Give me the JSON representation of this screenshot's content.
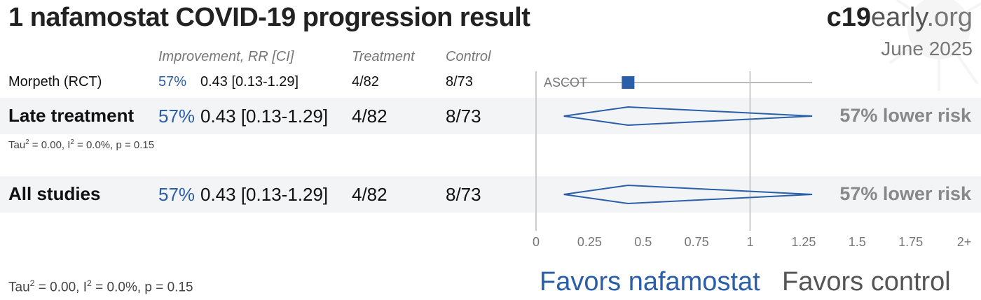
{
  "header": {
    "title": "1 nafamostat COVID-19 progression result",
    "brand_prefix": "c19",
    "brand_suffix": "early",
    "brand_tld": ".org",
    "date": "June 2025"
  },
  "columns": {
    "improvement": "Improvement, RR [CI]",
    "treatment": "Treatment",
    "control": "Control"
  },
  "rows": [
    {
      "name": "Morpeth (RCT)",
      "pct": "57%",
      "rr": "0.43 [0.13-1.29]",
      "treatment": "4/82",
      "control": "8/73",
      "label": "ASCOT"
    }
  ],
  "groups": [
    {
      "name": "Late treatment",
      "pct": "57%",
      "rr": "0.43 [0.13-1.29]",
      "treatment": "4/82",
      "control": "8/73",
      "risk": "57% lower risk",
      "tau": "Tau",
      "tau_eq": " = 0.00, I",
      "i_eq": " = 0.0%, p = 0.15"
    },
    {
      "name": "All studies",
      "pct": "57%",
      "rr": "0.43 [0.13-1.29]",
      "treatment": "4/82",
      "control": "8/73",
      "risk": "57% lower risk"
    }
  ],
  "footer": {
    "tau": "Tau",
    "tau_eq": " = 0.00, I",
    "i_eq": " = 0.0%, p = 0.15",
    "sup": "2",
    "favors_treatment": "Favors nafamostat",
    "favors_control": "Favors control"
  },
  "chart_data": {
    "type": "forest",
    "xlim": [
      0,
      2
    ],
    "ticks": [
      "0",
      "0.25",
      "0.5",
      "0.75",
      "1",
      "1.25",
      "1.5",
      "1.75",
      "2+"
    ],
    "tick_values": [
      0,
      0.25,
      0.5,
      0.75,
      1,
      1.25,
      1.5,
      1.75,
      2
    ],
    "reference_line": 1,
    "studies": [
      {
        "label": "ASCOT",
        "rr": 0.43,
        "ci": [
          0.13,
          1.29
        ]
      }
    ],
    "summaries": [
      {
        "name": "Late treatment",
        "rr": 0.43,
        "ci": [
          0.13,
          1.29
        ]
      },
      {
        "name": "All studies",
        "rr": 0.43,
        "ci": [
          0.13,
          1.29
        ]
      }
    ],
    "colors": {
      "marker": "#2b5ea8",
      "diamond": "#2b5ea8",
      "line": "#bbbbbb"
    }
  }
}
